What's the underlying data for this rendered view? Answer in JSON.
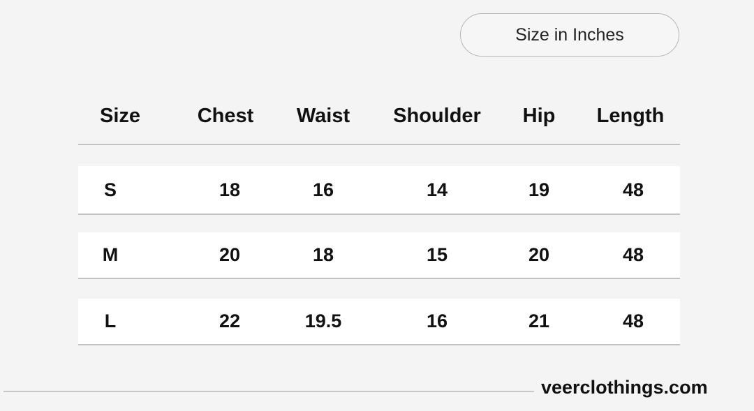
{
  "badge": "Size in Inches",
  "headers": [
    "Size",
    "Chest",
    "Waist",
    "Shoulder",
    "Hip",
    "Length"
  ],
  "rows": [
    [
      "S",
      "18",
      "16",
      "14",
      "19",
      "48"
    ],
    [
      "M",
      "20",
      "18",
      "15",
      "20",
      "48"
    ],
    [
      "L",
      "22",
      "19.5",
      "16",
      "21",
      "48"
    ]
  ],
  "brand": "veerclothings.com"
}
